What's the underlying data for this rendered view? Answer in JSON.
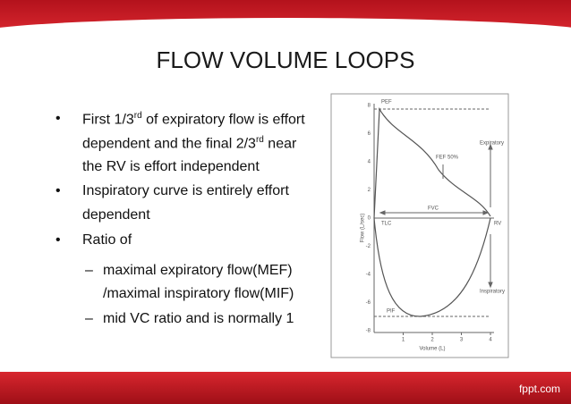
{
  "header": {
    "title": "FLOW VOLUME LOOPS"
  },
  "bullets": [
    {
      "parts": [
        "First 1/3",
        "rd",
        " of expiratory flow is effort",
        "dependent and the final 2/3",
        "rd",
        " near",
        "the RV is effort independent"
      ]
    },
    {
      "parts": [
        "Inspiratory curve is entirely effort",
        "dependent"
      ]
    },
    {
      "parts": [
        "Ratio of"
      ],
      "sub": [
        [
          "maximal expiratory flow(MEF)",
          "/maximal inspiratory flow(MIF)"
        ],
        [
          "mid VC ratio and is normally 1"
        ]
      ]
    }
  ],
  "figure": {
    "yticks": [
      "8",
      "6",
      "4",
      "2",
      "0",
      "-2",
      "-4",
      "-6",
      "-8"
    ],
    "xticks": [
      "1",
      "2",
      "3",
      "4"
    ],
    "ylabel": "Flow (L/sec)",
    "xlabel": "Volume (L)",
    "labels": {
      "pef": "PEF",
      "fef": "FEF 50%",
      "exp": "Expiratory",
      "insp": "Inspiratory",
      "tlc": "TLC",
      "fvc": "FVC",
      "rv": "RV",
      "pif": "PIF"
    }
  },
  "footer": "fppt.com"
}
